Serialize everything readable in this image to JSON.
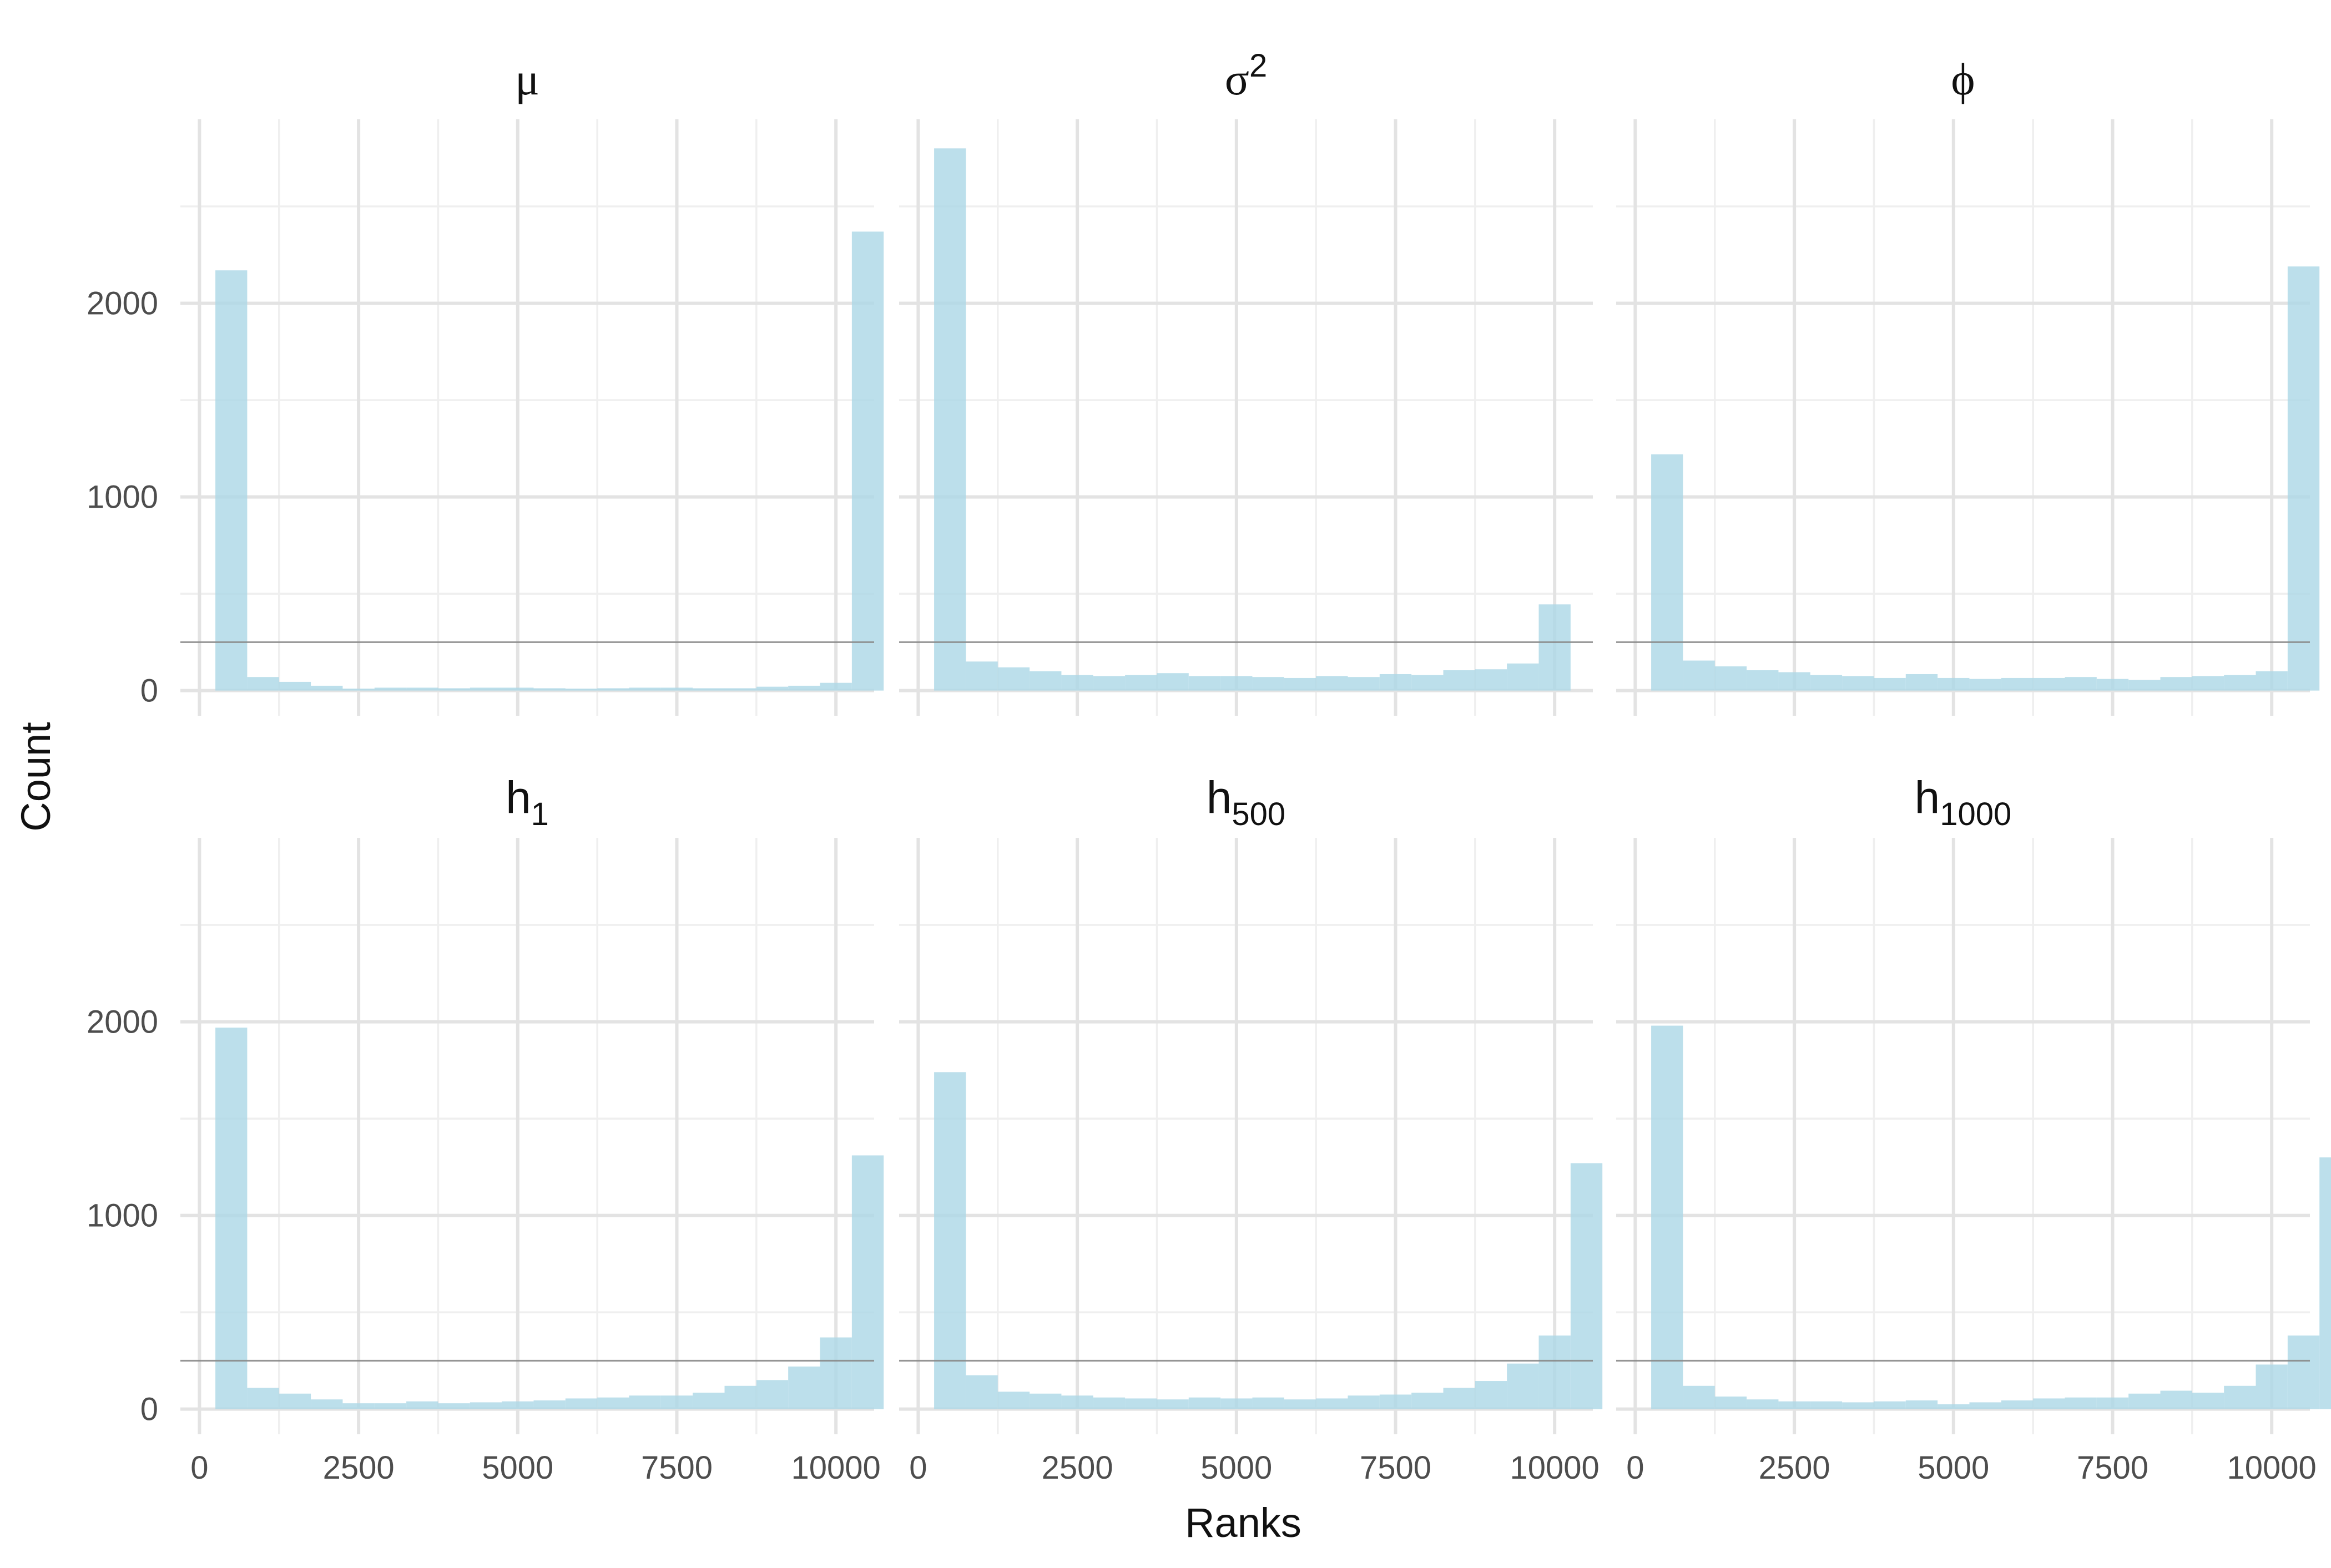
{
  "chart_data": {
    "type": "bar",
    "subtype": "faceted-histogram",
    "xlabel": "Ranks",
    "ylabel": "Count",
    "xlim": [
      -300,
      10600
    ],
    "ylim": [
      -130,
      2950
    ],
    "x_ticks": [
      0,
      2500,
      5000,
      7500,
      10000
    ],
    "x_tick_labels": [
      "0",
      "2500",
      "5000",
      "7500",
      "10000"
    ],
    "y_ticks": [
      0,
      1000,
      2000
    ],
    "y_tick_labels": [
      "0",
      "1000",
      "2000"
    ],
    "bin_width": 500,
    "bin_start": 250,
    "reference_line": 250,
    "bar_color": "#add8e6",
    "grid": true,
    "facets": [
      {
        "id": "mu",
        "title": {
          "base": "μ",
          "sup": "",
          "sub": ""
        },
        "values": [
          2170,
          70,
          45,
          25,
          10,
          15,
          15,
          12,
          15,
          15,
          12,
          10,
          12,
          15,
          15,
          12,
          12,
          20,
          25,
          40,
          2370
        ]
      },
      {
        "id": "sigma2",
        "title": {
          "base": "σ",
          "sup": "2",
          "sub": ""
        },
        "values": [
          2800,
          150,
          120,
          100,
          80,
          75,
          80,
          90,
          75,
          75,
          70,
          65,
          75,
          70,
          85,
          80,
          105,
          110,
          140,
          445
        ]
      },
      {
        "id": "phi",
        "title": {
          "base": "ϕ",
          "sup": "",
          "sub": ""
        },
        "values": [
          1220,
          155,
          125,
          105,
          95,
          80,
          75,
          65,
          85,
          65,
          60,
          65,
          65,
          70,
          60,
          55,
          70,
          75,
          80,
          100,
          2190
        ]
      },
      {
        "id": "h1",
        "title": {
          "base": "h",
          "sup": "",
          "sub": "1"
        },
        "values": [
          1970,
          110,
          80,
          50,
          30,
          30,
          40,
          30,
          35,
          40,
          45,
          55,
          60,
          70,
          70,
          85,
          120,
          150,
          220,
          370,
          1310
        ]
      },
      {
        "id": "h500",
        "title": {
          "base": "h",
          "sup": "",
          "sub": "500"
        },
        "values": [
          1740,
          175,
          90,
          80,
          70,
          60,
          55,
          50,
          60,
          55,
          60,
          50,
          55,
          70,
          75,
          85,
          110,
          145,
          235,
          380,
          1270
        ]
      },
      {
        "id": "h1000",
        "title": {
          "base": "h",
          "sup": "",
          "sub": "1000"
        },
        "values": [
          1980,
          120,
          65,
          50,
          40,
          40,
          35,
          40,
          45,
          25,
          35,
          45,
          55,
          60,
          60,
          80,
          95,
          85,
          120,
          230,
          380,
          1300
        ]
      }
    ]
  }
}
